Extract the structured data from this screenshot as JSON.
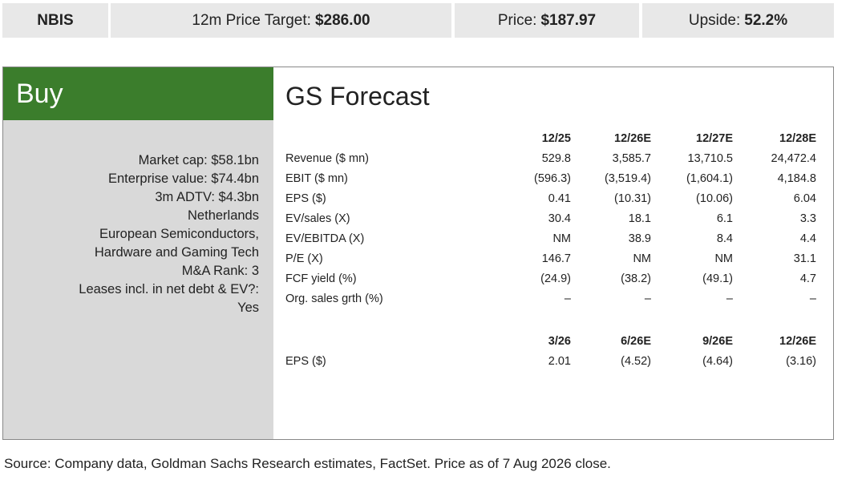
{
  "header": {
    "ticker": "NBIS",
    "target_label": "12m Price Target:",
    "target_value": "$286.00",
    "price_label": "Price:",
    "price_value": "$187.97",
    "upside_label": "Upside:",
    "upside_value": "52.2%"
  },
  "rating": "Buy",
  "profile_lines": [
    "Market cap: $58.1bn",
    "Enterprise value: $74.4bn",
    "3m ADTV: $4.3bn",
    "Netherlands",
    "European Semiconductors,",
    "Hardware and Gaming Tech",
    "M&A Rank: 3",
    "Leases incl. in net debt & EV?:",
    "Yes"
  ],
  "forecast": {
    "title": "GS Forecast",
    "annual": {
      "columns": [
        "12/25",
        "12/26E",
        "12/27E",
        "12/28E"
      ],
      "rows": [
        [
          "Revenue ($ mn)",
          "529.8",
          "3,585.7",
          "13,710.5",
          "24,472.4"
        ],
        [
          "EBIT ($ mn)",
          "(596.3)",
          "(3,519.4)",
          "(1,604.1)",
          "4,184.8"
        ],
        [
          "EPS ($)",
          "0.41",
          "(10.31)",
          "(10.06)",
          "6.04"
        ],
        [
          "EV/sales (X)",
          "30.4",
          "18.1",
          "6.1",
          "3.3"
        ],
        [
          "EV/EBITDA (X)",
          "NM",
          "38.9",
          "8.4",
          "4.4"
        ],
        [
          "P/E (X)",
          "146.7",
          "NM",
          "NM",
          "31.1"
        ],
        [
          "FCF yield (%)",
          "(24.9)",
          "(38.2)",
          "(49.1)",
          "4.7"
        ],
        [
          "Org. sales grth (%)",
          "–",
          "–",
          "–",
          "–"
        ]
      ]
    },
    "quarterly": {
      "columns": [
        "3/26",
        "6/26E",
        "9/26E",
        "12/26E"
      ],
      "rows": [
        [
          "EPS ($)",
          "2.01",
          "(4.52)",
          "(4.64)",
          "(3.16)"
        ]
      ]
    }
  },
  "source": "Source: Company data, Goldman Sachs Research estimates, FactSet. Price as of 7 Aug 2026 close."
}
